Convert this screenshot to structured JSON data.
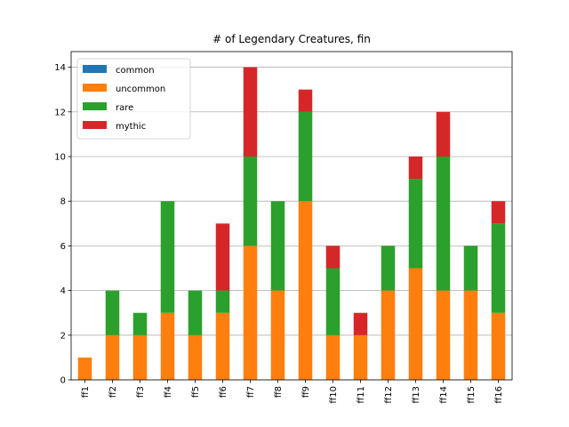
{
  "chart_data": {
    "type": "bar",
    "stacked": true,
    "title": "# of Legendary Creatures, fin",
    "xlabel": "",
    "ylabel": "",
    "categories": [
      "ff1",
      "ff2",
      "ff3",
      "ff4",
      "ff5",
      "ff6",
      "ff7",
      "ff8",
      "ff9",
      "ff10",
      "ff11",
      "ff12",
      "ff13",
      "ff14",
      "ff15",
      "ff16"
    ],
    "series": [
      {
        "name": "common",
        "color": "#1f77b4",
        "values": [
          0,
          0,
          0,
          0,
          0,
          0,
          0,
          0,
          0,
          0,
          0,
          0,
          0,
          0,
          0,
          0
        ]
      },
      {
        "name": "uncommon",
        "color": "#ff7f0e",
        "values": [
          1,
          2,
          2,
          3,
          2,
          3,
          6,
          4,
          8,
          2,
          2,
          4,
          5,
          4,
          4,
          3
        ]
      },
      {
        "name": "rare",
        "color": "#2ca02c",
        "values": [
          0,
          2,
          1,
          5,
          2,
          1,
          4,
          4,
          4,
          3,
          0,
          2,
          4,
          6,
          2,
          4
        ]
      },
      {
        "name": "mythic",
        "color": "#d62728",
        "values": [
          0,
          0,
          0,
          0,
          0,
          3,
          4,
          0,
          1,
          1,
          1,
          0,
          1,
          2,
          0,
          1
        ]
      }
    ],
    "ylim": [
      0,
      14.7
    ],
    "yticks": [
      0,
      2,
      4,
      6,
      8,
      10,
      12,
      14
    ],
    "grid": "y",
    "legend_position": "top-left"
  }
}
